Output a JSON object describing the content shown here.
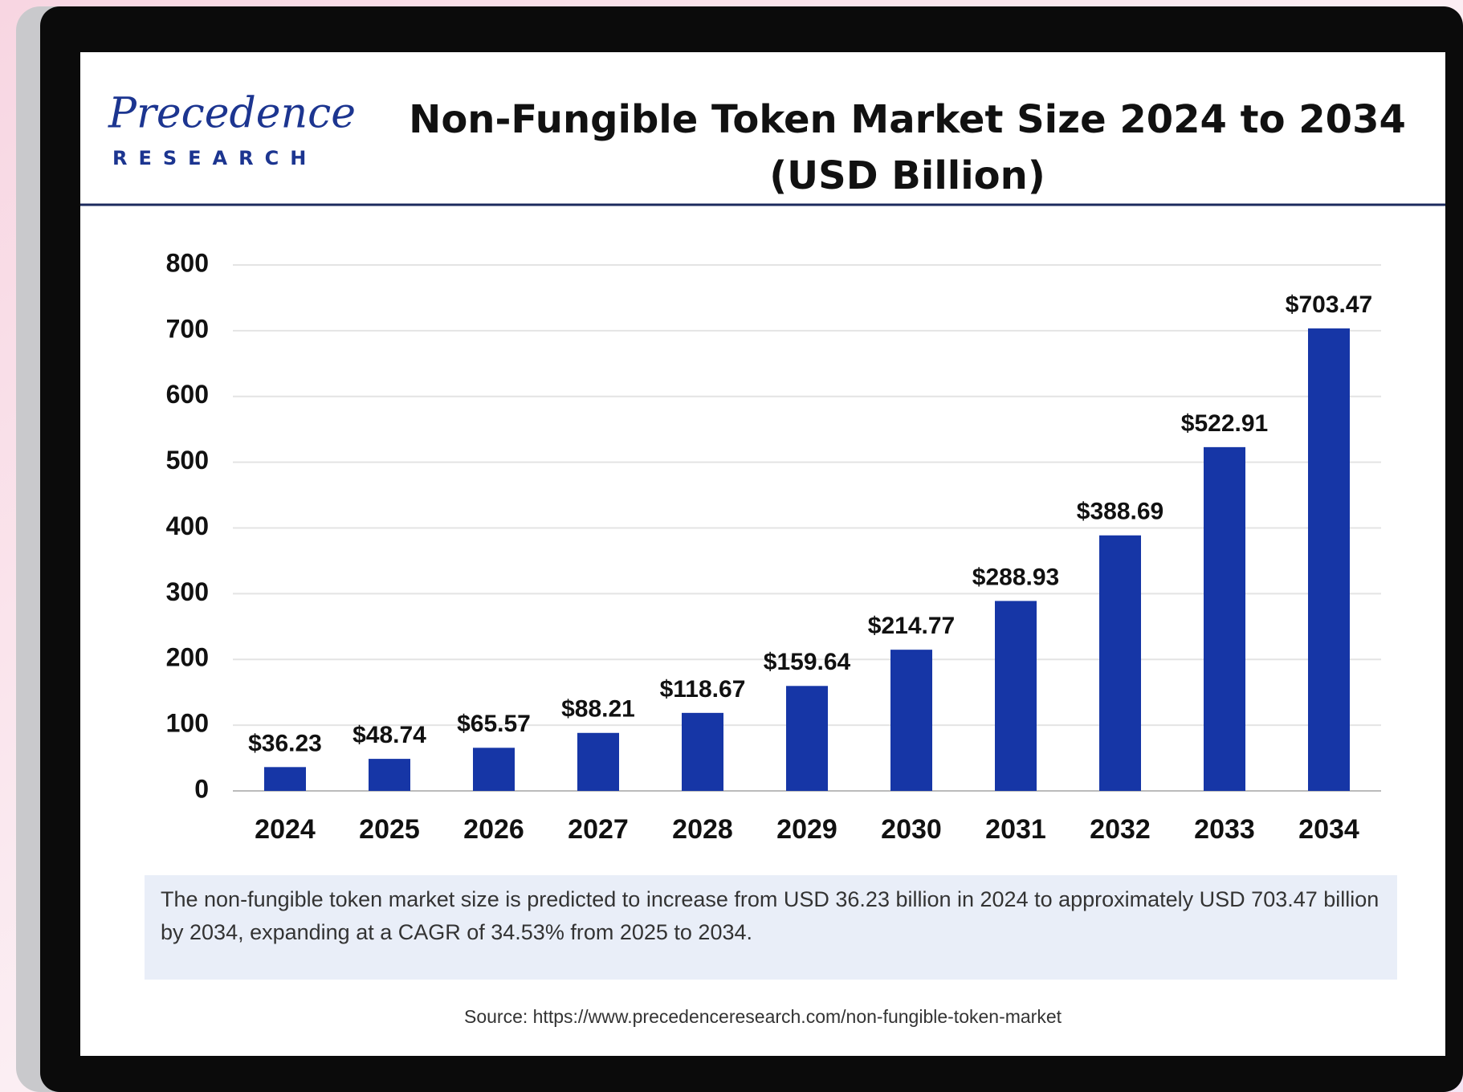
{
  "brand": {
    "name": "Precedence",
    "tagline": "RESEARCH"
  },
  "chart_data": {
    "type": "bar",
    "title": "Non-Fungible Token Market Size 2024 to 2034\n(USD Billion)",
    "categories": [
      "2024",
      "2025",
      "2026",
      "2027",
      "2028",
      "2029",
      "2030",
      "2031",
      "2032",
      "2033",
      "2034"
    ],
    "values": [
      36.23,
      48.74,
      65.57,
      88.21,
      118.67,
      159.64,
      214.77,
      288.93,
      388.69,
      522.91,
      703.47
    ],
    "value_labels": [
      "$36.23",
      "$48.74",
      "$65.57",
      "$88.21",
      "$118.67",
      "$159.64",
      "$214.77",
      "$288.93",
      "$388.69",
      "$522.91",
      "$703.47"
    ],
    "color": "#1636a6",
    "ylim": [
      0,
      800
    ],
    "yticks": [
      0,
      100,
      200,
      300,
      400,
      500,
      600,
      700,
      800
    ],
    "grid": true,
    "note": "The non-fungible token market size is predicted to increase from USD 36.23 billion in 2024 to approximately USD 703.47 billion by 2034, expanding at a CAGR of 34.53% from 2025 to 2034.",
    "source": "Source: https://www.precedenceresearch.com/non-fungible-token-market"
  }
}
